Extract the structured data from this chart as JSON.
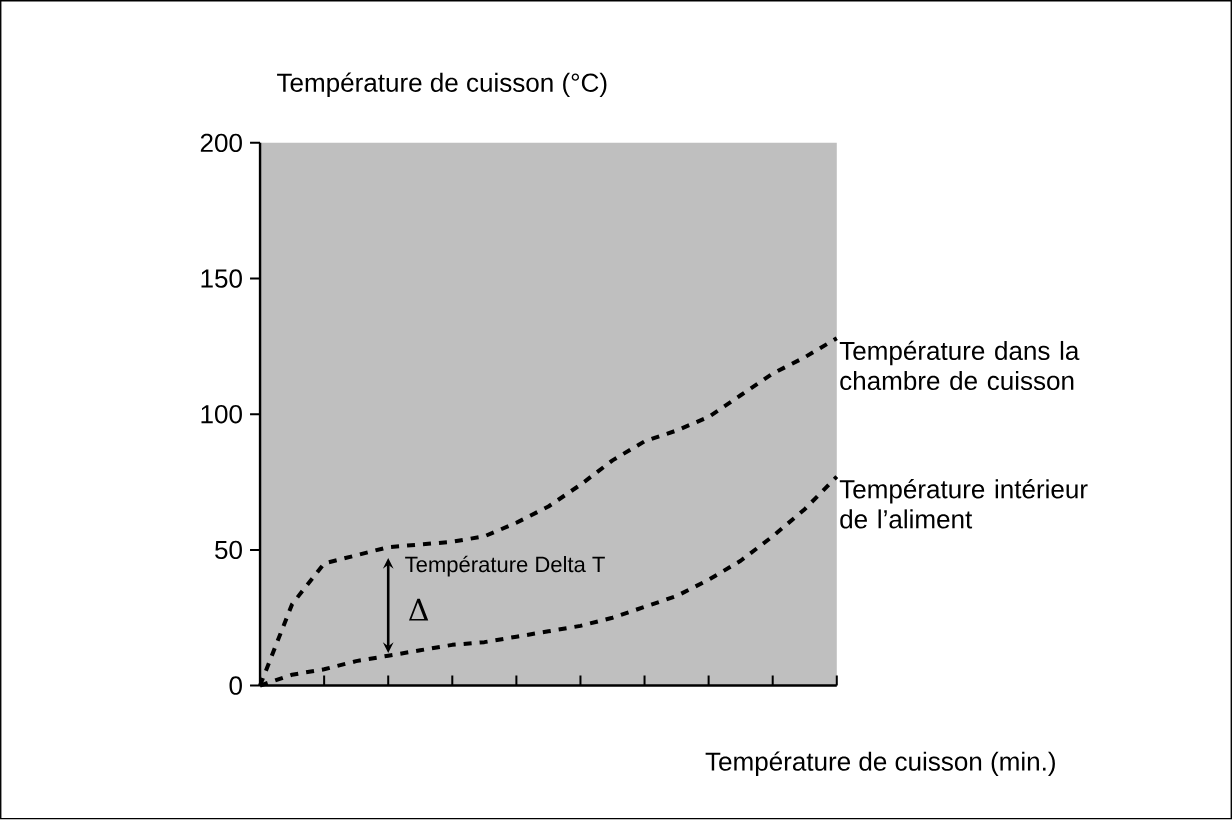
{
  "chart_data": {
    "type": "line",
    "ylabel": "Température de cuisson (°C)",
    "xlabel": "Température de cuisson (min.)",
    "categories": [
      null,
      null,
      null,
      null,
      null,
      null,
      null,
      null,
      null,
      null,
      null,
      null,
      null,
      null,
      null,
      null,
      null,
      null,
      null
    ],
    "ylim": [
      0,
      200
    ],
    "yticks": [
      0,
      50,
      100,
      150,
      200
    ],
    "marker": "none",
    "line_style": "dashed",
    "series": [
      {
        "name": "Température dans la chambre de cuisson",
        "color": "#000000",
        "values": [
          0,
          30,
          45,
          48,
          51,
          52,
          53,
          55,
          60,
          66,
          74,
          83,
          90,
          94,
          99,
          107,
          115,
          121,
          128
        ]
      },
      {
        "name": "Température intérieur de l’aliment",
        "color": "#000000",
        "values": [
          0,
          4,
          6,
          9,
          11,
          13,
          15,
          16,
          18,
          20,
          22,
          25,
          29,
          33,
          39,
          46,
          55,
          65,
          77
        ]
      }
    ],
    "annotations": [
      "Température Delta T",
      "Δ"
    ]
  }
}
